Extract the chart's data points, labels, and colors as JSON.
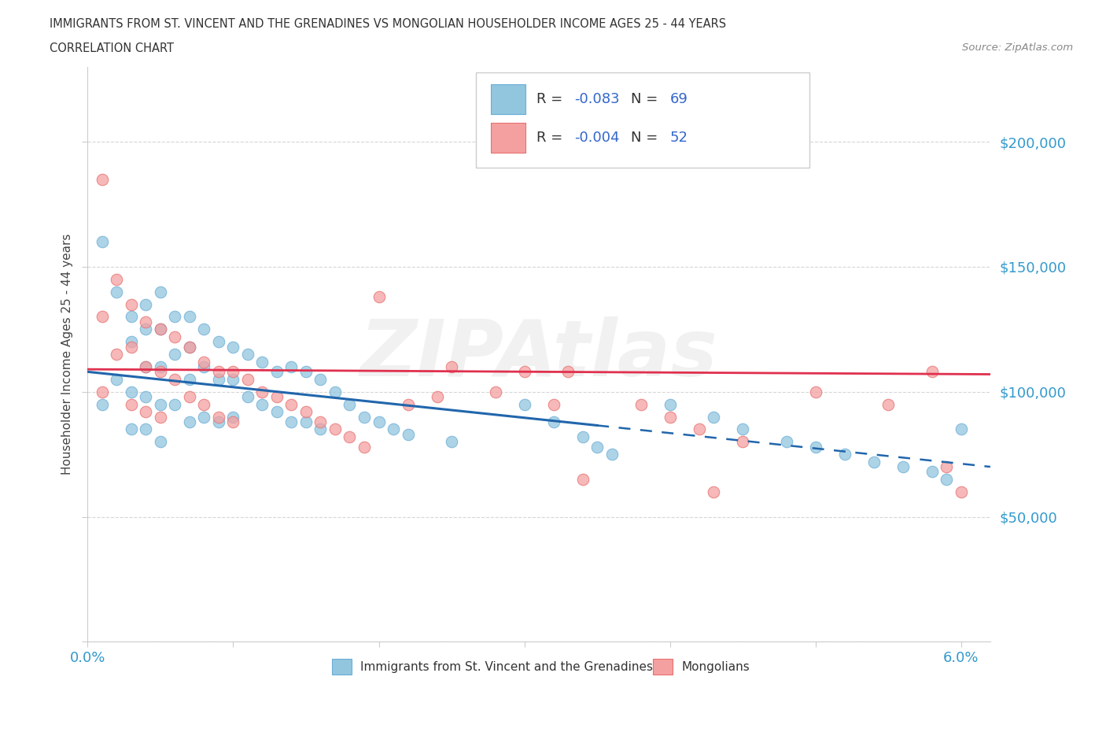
{
  "title_line1": "IMMIGRANTS FROM ST. VINCENT AND THE GRENADINES VS MONGOLIAN HOUSEHOLDER INCOME AGES 25 - 44 YEARS",
  "title_line2": "CORRELATION CHART",
  "source_text": "Source: ZipAtlas.com",
  "ylabel": "Householder Income Ages 25 - 44 years",
  "xlim": [
    0.0,
    0.062
  ],
  "ylim": [
    0,
    230000
  ],
  "xticks": [
    0.0,
    0.01,
    0.02,
    0.03,
    0.04,
    0.05,
    0.06
  ],
  "yticks": [
    0,
    50000,
    100000,
    150000,
    200000
  ],
  "yticklabels": [
    "",
    "$50,000",
    "$100,000",
    "$150,000",
    "$200,000"
  ],
  "blue_color": "#92c5de",
  "pink_color": "#f4a0a0",
  "blue_marker_edge": "#6baed6",
  "pink_marker_edge": "#e87070",
  "blue_line_color": "#2166ac",
  "pink_line_color": "#e0304e",
  "R_blue": -0.083,
  "N_blue": 69,
  "R_pink": -0.004,
  "N_pink": 52,
  "legend_label_blue": "Immigrants from St. Vincent and the Grenadines",
  "legend_label_pink": "Mongolians",
  "blue_line_solid_end": 0.035,
  "blue_scatter_x": [
    0.001,
    0.001,
    0.002,
    0.002,
    0.003,
    0.003,
    0.003,
    0.003,
    0.004,
    0.004,
    0.004,
    0.004,
    0.004,
    0.005,
    0.005,
    0.005,
    0.005,
    0.005,
    0.006,
    0.006,
    0.006,
    0.007,
    0.007,
    0.007,
    0.007,
    0.008,
    0.008,
    0.008,
    0.009,
    0.009,
    0.009,
    0.01,
    0.01,
    0.01,
    0.011,
    0.011,
    0.012,
    0.012,
    0.013,
    0.013,
    0.014,
    0.014,
    0.015,
    0.015,
    0.016,
    0.016,
    0.017,
    0.018,
    0.019,
    0.02,
    0.021,
    0.022,
    0.025,
    0.03,
    0.032,
    0.034,
    0.035,
    0.036,
    0.04,
    0.043,
    0.045,
    0.048,
    0.05,
    0.052,
    0.054,
    0.056,
    0.058,
    0.059,
    0.06
  ],
  "blue_scatter_y": [
    160000,
    95000,
    140000,
    105000,
    130000,
    120000,
    100000,
    85000,
    135000,
    125000,
    110000,
    98000,
    85000,
    140000,
    125000,
    110000,
    95000,
    80000,
    130000,
    115000,
    95000,
    130000,
    118000,
    105000,
    88000,
    125000,
    110000,
    90000,
    120000,
    105000,
    88000,
    118000,
    105000,
    90000,
    115000,
    98000,
    112000,
    95000,
    108000,
    92000,
    110000,
    88000,
    108000,
    88000,
    105000,
    85000,
    100000,
    95000,
    90000,
    88000,
    85000,
    83000,
    80000,
    95000,
    88000,
    82000,
    78000,
    75000,
    95000,
    90000,
    85000,
    80000,
    78000,
    75000,
    72000,
    70000,
    68000,
    65000,
    85000
  ],
  "pink_scatter_x": [
    0.001,
    0.001,
    0.001,
    0.002,
    0.002,
    0.003,
    0.003,
    0.003,
    0.004,
    0.004,
    0.004,
    0.005,
    0.005,
    0.005,
    0.006,
    0.006,
    0.007,
    0.007,
    0.008,
    0.008,
    0.009,
    0.009,
    0.01,
    0.01,
    0.011,
    0.012,
    0.013,
    0.014,
    0.015,
    0.016,
    0.017,
    0.018,
    0.019,
    0.02,
    0.022,
    0.025,
    0.028,
    0.03,
    0.032,
    0.033,
    0.038,
    0.04,
    0.042,
    0.045,
    0.05,
    0.055,
    0.058,
    0.059,
    0.06,
    0.024,
    0.034,
    0.043
  ],
  "pink_scatter_y": [
    185000,
    130000,
    100000,
    145000,
    115000,
    135000,
    118000,
    95000,
    128000,
    110000,
    92000,
    125000,
    108000,
    90000,
    122000,
    105000,
    118000,
    98000,
    112000,
    95000,
    108000,
    90000,
    108000,
    88000,
    105000,
    100000,
    98000,
    95000,
    92000,
    88000,
    85000,
    82000,
    78000,
    138000,
    95000,
    110000,
    100000,
    108000,
    95000,
    108000,
    95000,
    90000,
    85000,
    80000,
    100000,
    95000,
    108000,
    70000,
    60000,
    98000,
    65000,
    60000
  ]
}
